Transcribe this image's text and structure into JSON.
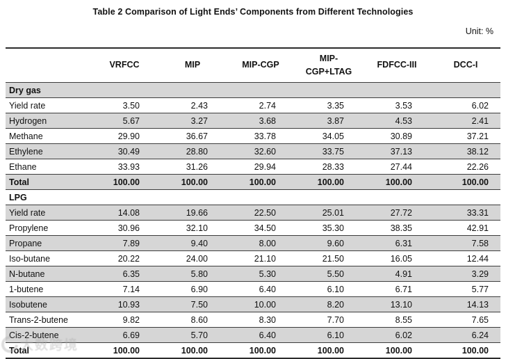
{
  "title": "Table 2 Comparison of Light Ends’ Components from Different Technologies",
  "unit_label": "Unit: %",
  "watermark": {
    "text": "大数跨境"
  },
  "colors": {
    "stripe": "#d6d6d6",
    "rule": "#2b2b2b",
    "row_line": "#3c3c3c",
    "text": "#111111",
    "watermark": "#b0b0b0"
  },
  "table": {
    "columns": [
      "VRFCC",
      "MIP",
      "MIP-CGP",
      "MIP-\nCGP+LTAG",
      "FDFCC-III",
      "DCC-I"
    ],
    "sections": [
      {
        "name": "Dry gas",
        "rows": [
          {
            "label": "Yield rate",
            "values": [
              "3.50",
              "2.43",
              "2.74",
              "3.35",
              "3.53",
              "6.02"
            ]
          },
          {
            "label": "Hydrogen",
            "values": [
              "5.67",
              "3.27",
              "3.68",
              "3.87",
              "4.53",
              "2.41"
            ]
          },
          {
            "label": "Methane",
            "values": [
              "29.90",
              "36.67",
              "33.78",
              "34.05",
              "30.89",
              "37.21"
            ]
          },
          {
            "label": "Ethylene",
            "values": [
              "30.49",
              "28.80",
              "32.60",
              "33.75",
              "37.13",
              "38.12"
            ]
          },
          {
            "label": "Ethane",
            "values": [
              "33.93",
              "31.26",
              "29.94",
              "28.33",
              "27.44",
              "22.26"
            ]
          }
        ],
        "total_label": "Total",
        "total_values": [
          "100.00",
          "100.00",
          "100.00",
          "100.00",
          "100.00",
          "100.00"
        ]
      },
      {
        "name": "LPG",
        "rows": [
          {
            "label": "Yield rate",
            "values": [
              "14.08",
              "19.66",
              "22.50",
              "25.01",
              "27.72",
              "33.31"
            ]
          },
          {
            "label": "Propylene",
            "values": [
              "30.96",
              "32.10",
              "34.50",
              "35.30",
              "38.35",
              "42.91"
            ]
          },
          {
            "label": "Propane",
            "values": [
              "7.89",
              "9.40",
              "8.00",
              "9.60",
              "6.31",
              "7.58"
            ]
          },
          {
            "label": "Iso-butane",
            "values": [
              "20.22",
              "24.00",
              "21.10",
              "21.50",
              "16.05",
              "12.44"
            ]
          },
          {
            "label": "N-butane",
            "values": [
              "6.35",
              "5.80",
              "5.30",
              "5.50",
              "4.91",
              "3.29"
            ]
          },
          {
            "label": "1-butene",
            "values": [
              "7.14",
              "6.90",
              "6.40",
              "6.10",
              "6.71",
              "5.77"
            ]
          },
          {
            "label": "Isobutene",
            "values": [
              "10.93",
              "7.50",
              "10.00",
              "8.20",
              "13.10",
              "14.13"
            ]
          },
          {
            "label": "Trans-2-butene",
            "values": [
              "9.82",
              "8.60",
              "8.30",
              "7.70",
              "8.55",
              "7.65"
            ]
          },
          {
            "label": "Cis-2-butene",
            "values": [
              "6.69",
              "5.70",
              "6.40",
              "6.10",
              "6.02",
              "6.24"
            ]
          }
        ],
        "total_label": "Total",
        "total_values": [
          "100.00",
          "100.00",
          "100.00",
          "100.00",
          "100.00",
          "100.00"
        ]
      }
    ]
  }
}
